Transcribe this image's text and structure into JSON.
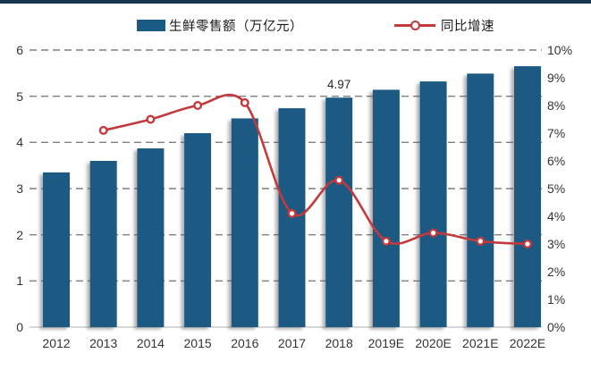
{
  "page": {
    "background": "#ffffff",
    "top_accent_color": "#16384E"
  },
  "legend": {
    "series1_label": "生鲜零售额（万亿元）",
    "series2_label": "同比增速"
  },
  "colors": {
    "bar": "#1A5A83",
    "line": "#C4393B",
    "gridline": "#7F7F7F",
    "baseline": "#BFBFBF",
    "tick_text": "#333333",
    "data_label_text": "#262626"
  },
  "chart_data": {
    "type": "bar",
    "subtype": "bar+line combo, dual axis",
    "categories": [
      "2012",
      "2013",
      "2014",
      "2015",
      "2016",
      "2017",
      "2018",
      "2019E",
      "2020E",
      "2021E",
      "2022E"
    ],
    "series": [
      {
        "name": "生鲜零售额（万亿元）",
        "type": "bar",
        "axis": "left",
        "values": [
          3.35,
          3.6,
          3.87,
          4.2,
          4.52,
          4.74,
          4.97,
          5.14,
          5.32,
          5.49,
          5.65
        ]
      },
      {
        "name": "同比增速",
        "type": "line",
        "axis": "right",
        "unit": "%",
        "values": [
          null,
          7.1,
          7.5,
          8.0,
          8.1,
          4.1,
          5.3,
          3.1,
          3.4,
          3.1,
          3.0
        ]
      }
    ],
    "data_labels": [
      {
        "category": "2018",
        "series": "生鲜零售额（万亿元）",
        "text": "4.97"
      }
    ],
    "left_axis": {
      "min": 0,
      "max": 6,
      "ticks": [
        "0",
        "1",
        "2",
        "3",
        "4",
        "5",
        "6"
      ]
    },
    "right_axis": {
      "min": 0,
      "max": 10,
      "ticks": [
        "0%",
        "1%",
        "2%",
        "3%",
        "4%",
        "5%",
        "6%",
        "7%",
        "8%",
        "9%",
        "10%"
      ]
    },
    "grid": "horizontal dashed gray lines at left-axis integers, solid baseline at 0",
    "legend_position": "top"
  }
}
